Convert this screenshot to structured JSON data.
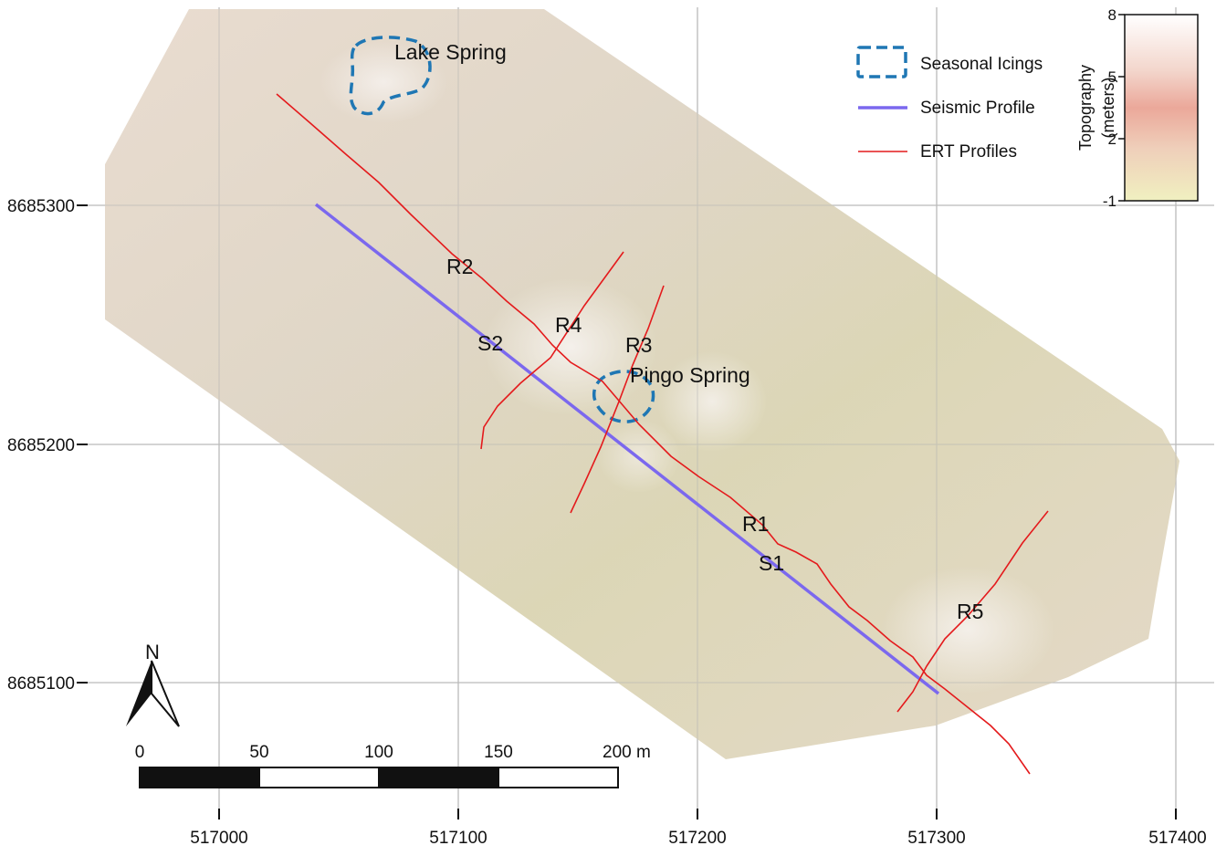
{
  "map": {
    "x_axis": {
      "ticks": [
        "517000",
        "517100",
        "517200",
        "517300",
        "517400"
      ]
    },
    "y_axis": {
      "ticks": [
        "8685300",
        "8685200",
        "8685100"
      ]
    },
    "features": {
      "lake_spring": "Lake Spring",
      "pingo_spring": "Pingo Spring"
    },
    "profile_labels": {
      "r1": "R1",
      "r2": "R2",
      "r3": "R3",
      "r4": "R4",
      "r5": "R5",
      "s1": "S1",
      "s2": "S2"
    },
    "legend": {
      "icings": "Seasonal Icings",
      "seismic": "Seismic Profile",
      "ert": "ERT Profiles"
    },
    "colorbar": {
      "title_line1": "Topography",
      "title_line2": "(meters)",
      "ticks": [
        "8",
        "5",
        "2",
        "-1"
      ]
    },
    "north_arrow": {
      "label": "N"
    },
    "scale_bar": {
      "labels": [
        "0",
        "50",
        "100",
        "150",
        "200 m"
      ]
    },
    "colors": {
      "icings": "#1f77b4",
      "seismic": "#7b68ee",
      "ert": "#e41a1c",
      "grid": "#bdbdbd"
    }
  }
}
